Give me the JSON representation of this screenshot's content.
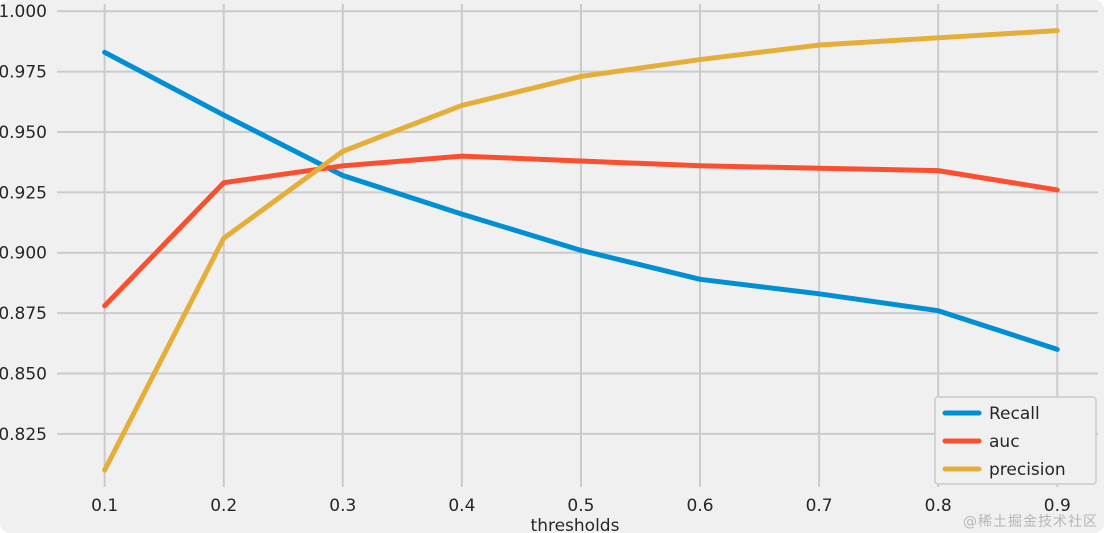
{
  "watermark": "@稀土掘金技术社区",
  "chart_data": {
    "type": "line",
    "title": "",
    "xlabel": "thresholds",
    "ylabel": "",
    "x": [
      0.1,
      0.2,
      0.3,
      0.4,
      0.5,
      0.6,
      0.7,
      0.8,
      0.9
    ],
    "series": [
      {
        "name": "Recall",
        "color": "#008FD5",
        "values": [
          0.983,
          0.957,
          0.932,
          0.916,
          0.901,
          0.889,
          0.883,
          0.876,
          0.86
        ]
      },
      {
        "name": "auc",
        "color": "#FC4F30",
        "values": [
          0.878,
          0.929,
          0.936,
          0.94,
          0.938,
          0.936,
          0.935,
          0.934,
          0.926
        ]
      },
      {
        "name": "precision",
        "color": "#E5AE38",
        "values": [
          0.81,
          0.906,
          0.942,
          0.961,
          0.973,
          0.98,
          0.986,
          0.989,
          0.992
        ]
      }
    ],
    "xticks": [
      0.1,
      0.2,
      0.3,
      0.4,
      0.5,
      0.6,
      0.7,
      0.8,
      0.9
    ],
    "yticks": [
      0.825,
      0.85,
      0.875,
      0.9,
      0.925,
      0.95,
      0.975,
      1.0
    ],
    "xlim": [
      0.06,
      0.93
    ],
    "ylim": [
      0.803,
      1.003
    ],
    "grid": true,
    "legend_position": "lower right",
    "legend_labels": [
      "Recall",
      "auc",
      "precision"
    ],
    "style": {
      "background": "#F0F0F0",
      "grid_color": "#CBCBCB",
      "text_color": "#262626",
      "legend_face": "#F0F0F0",
      "legend_edge": "#CBCBCB",
      "line_width": 5
    }
  }
}
